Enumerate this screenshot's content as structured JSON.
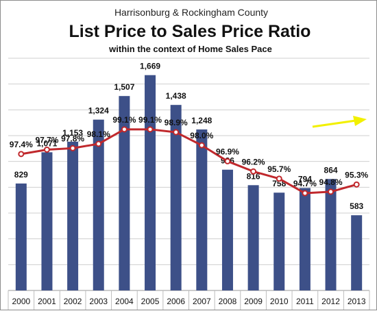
{
  "header": {
    "line1": "Harrisonburg & Rockingham County",
    "line2": "List Price to Sales Price Ratio",
    "line3": "within the context of Home Sales Pace"
  },
  "colors": {
    "bar": "#3d5088",
    "line": "#c0282c",
    "arrow": "#f2f000",
    "grid": "#cfcfcf"
  },
  "chart_data": {
    "type": "bar",
    "title": "List Price to Sales Price Ratio",
    "categories": [
      "2000",
      "2001",
      "2002",
      "2003",
      "2004",
      "2005",
      "2006",
      "2007",
      "2008",
      "2009",
      "2010",
      "2011",
      "2012",
      "2013"
    ],
    "series": [
      {
        "type": "bar",
        "values": [
          829,
          1071,
          1153,
          1324,
          1507,
          1669,
          1438,
          1248,
          936,
          816,
          758,
          794,
          864,
          583
        ],
        "labels": [
          "829",
          "1,071",
          "1,153",
          "1,324",
          "1,507",
          "1,669",
          "1,438",
          "1,248",
          "936",
          "816",
          "758",
          "794",
          "864",
          "583"
        ]
      },
      {
        "type": "line",
        "values": [
          97.4,
          97.7,
          97.8,
          98.1,
          99.1,
          99.1,
          98.9,
          98.0,
          96.9,
          96.2,
          95.7,
          94.7,
          94.8,
          95.3
        ],
        "labels": [
          "97.4%",
          "97.7%",
          "97.8%",
          "98.1%",
          "99.1%",
          "99.1%",
          "98.9%",
          "98.0%",
          "96.9%",
          "96.2%",
          "95.7%",
          "94.7%",
          "94.8%",
          "95.3%"
        ]
      }
    ],
    "ylim": [
      0,
      1800
    ],
    "y2lim": [
      88,
      104
    ],
    "grid": true,
    "annotation": "yellow upward trend arrow near 2011-2013"
  }
}
